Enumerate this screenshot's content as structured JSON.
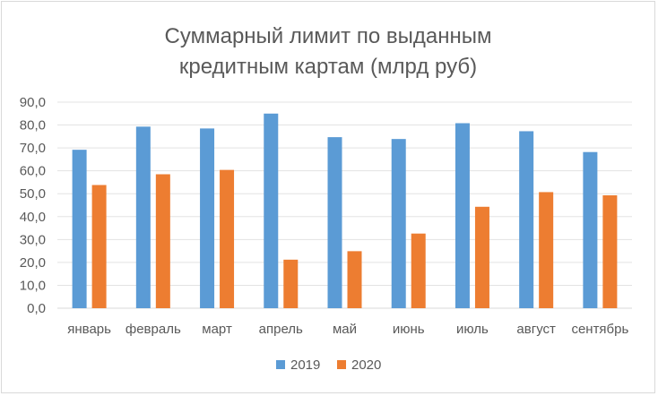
{
  "chart_data": {
    "type": "bar",
    "title_lines": [
      "Суммарный лимит по выданным",
      "кредитным картам (млрд руб)"
    ],
    "categories": [
      "январь",
      "февраль",
      "март",
      "апрель",
      "май",
      "июнь",
      "июль",
      "август",
      "сентябрь"
    ],
    "series": [
      {
        "name": "2019",
        "color": "#5B9BD5",
        "values": [
          69.2,
          79.3,
          78.5,
          85.0,
          74.7,
          73.9,
          80.8,
          77.3,
          68.2
        ]
      },
      {
        "name": "2020",
        "color": "#ED7D31",
        "values": [
          53.8,
          58.5,
          60.4,
          21.2,
          24.9,
          32.6,
          44.3,
          50.7,
          49.3
        ]
      }
    ],
    "ylim": [
      0,
      90
    ],
    "yticks": [
      "0,0",
      "10,0",
      "20,0",
      "30,0",
      "40,0",
      "50,0",
      "60,0",
      "70,0",
      "80,0",
      "90,0"
    ],
    "grid": true,
    "legend_position": "bottom"
  }
}
